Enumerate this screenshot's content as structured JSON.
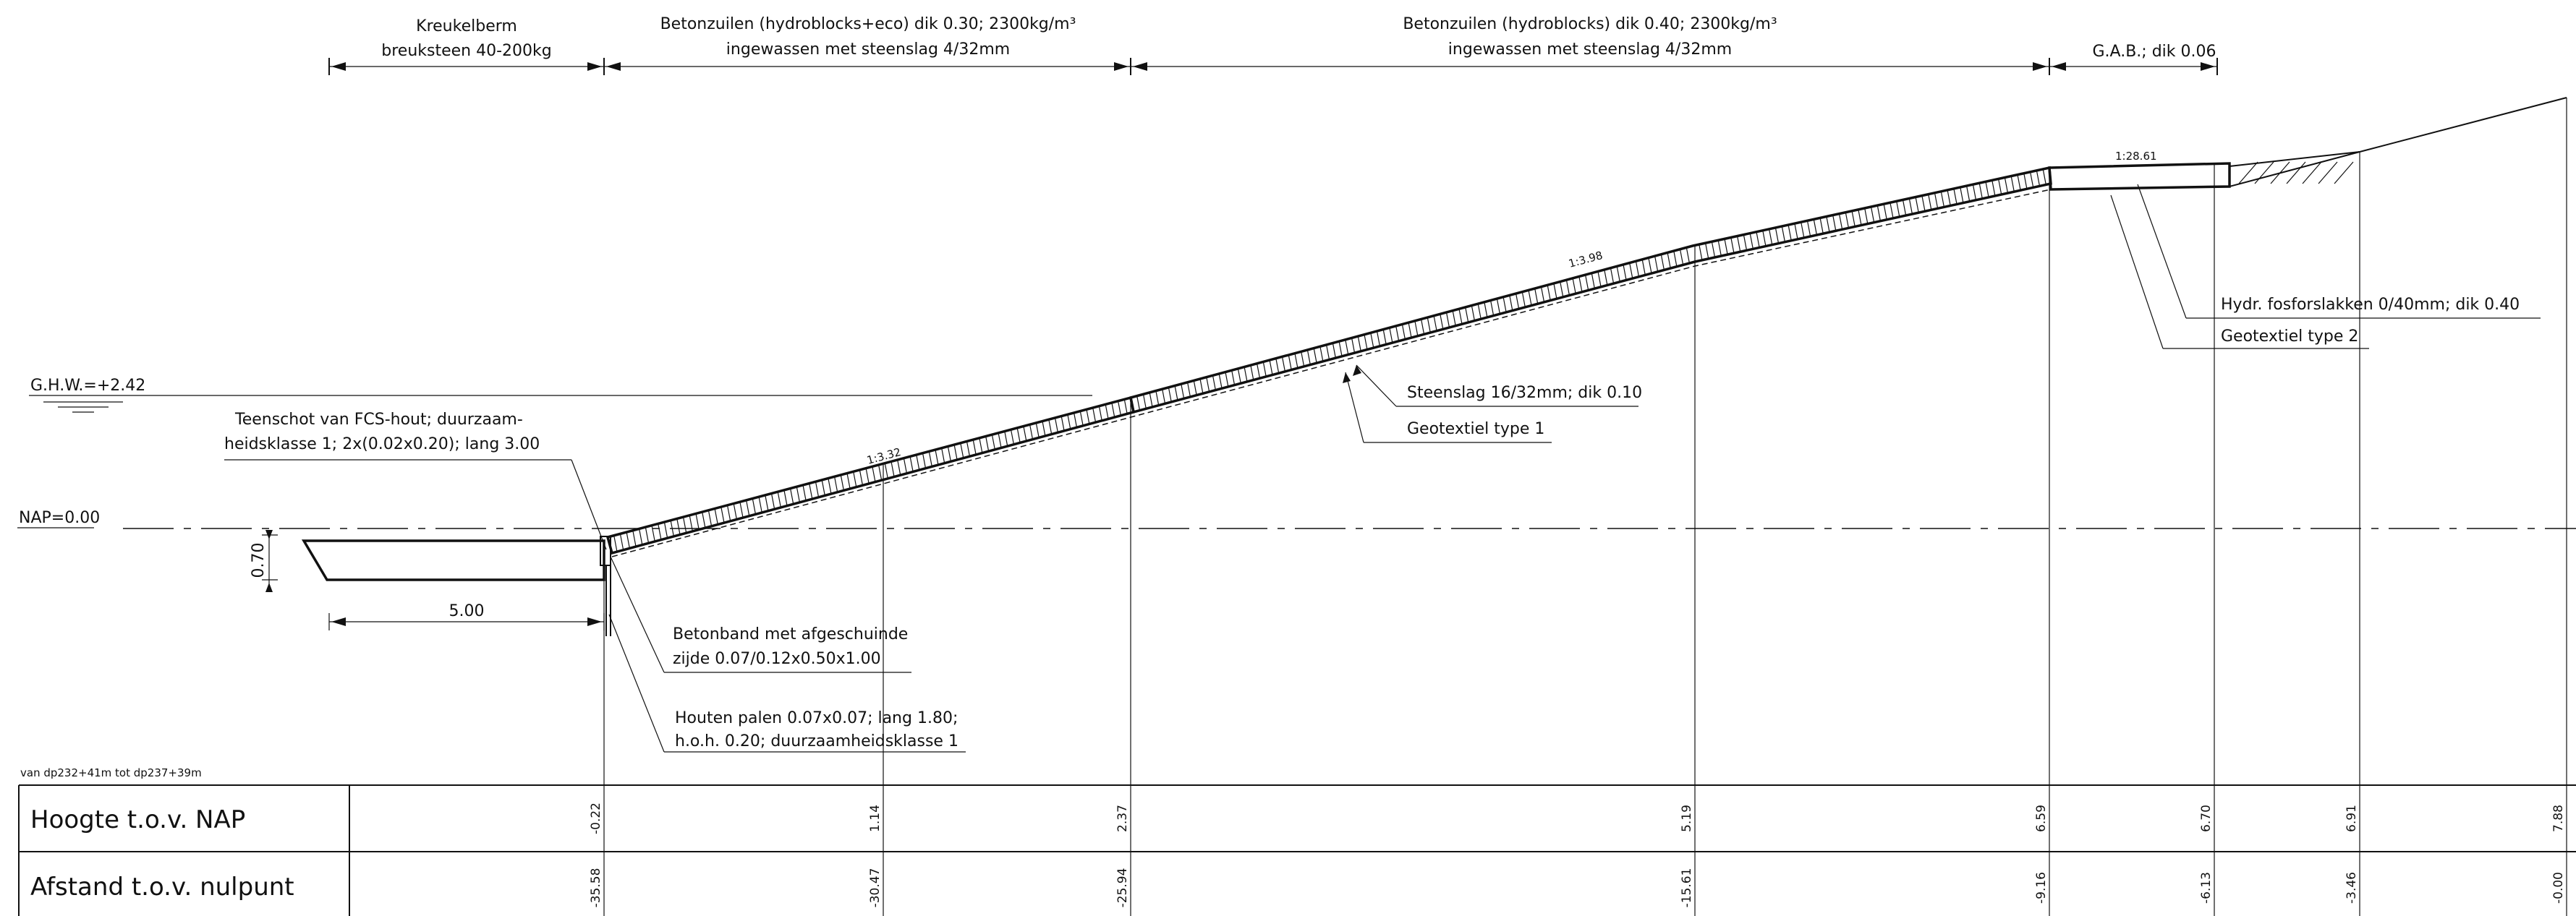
{
  "dimension_labels": {
    "kreukelberm_line1": "Kreukelberm",
    "kreukelberm_line2": "breuksteen 40-200kg",
    "zone2_line1": "Betonzuilen (hydroblocks+eco) dik 0.30; 2300kg/m³",
    "zone2_line2": "ingewassen met steenslag 4/32mm",
    "zone3_line1": "Betonzuilen (hydroblocks) dik 0.40; 2300kg/m³",
    "zone3_line2": "ingewassen met steenslag 4/32mm",
    "gab": "G.A.B.; dik 0.06"
  },
  "levels": {
    "ghw": "G.H.W.=+2.42",
    "nap": "NAP=0.00"
  },
  "slopes": {
    "s1": "1:3.32",
    "s2": "1:3.98",
    "s3": "1:28.61"
  },
  "callouts": {
    "teenschot_line1": "Teenschot van FCS-hout; duurzaam-",
    "teenschot_line2": "heidsklasse 1; 2x(0.02x0.20); lang 3.00",
    "steenslag": "Steenslag 16/32mm; dik 0.10",
    "geotextiel1": "Geotextiel type 1",
    "fosforslakken": "Hydr. fosforslakken 0/40mm; dik 0.40",
    "geotextiel2": "Geotextiel type 2",
    "betonband_line1": "Betonband met afgeschuinde",
    "betonband_line2": "zijde 0.07/0.12x0.50x1.00",
    "palen_line1": "Houten palen 0.07x0.07; lang 1.80;",
    "palen_line2": "h.o.h. 0.20; duurzaamheidsklasse 1"
  },
  "dimensions": {
    "berm_width": "5.00",
    "berm_thickness": "0.70"
  },
  "table": {
    "range_label": "van dp232+41m tot dp237+39m",
    "row1_label": "Hoogte t.o.v. NAP",
    "row2_label": "Afstand t.o.v. nulpunt",
    "heights": [
      "-0.22",
      "1.14",
      "2.37",
      "5.19",
      "6.59",
      "6.70",
      "6.91",
      "7.88"
    ],
    "distances": [
      "-35.58",
      "-30.47",
      "-25.94",
      "-15.61",
      "-9.16",
      "-6.13",
      "-3.46",
      "-0.00"
    ]
  }
}
